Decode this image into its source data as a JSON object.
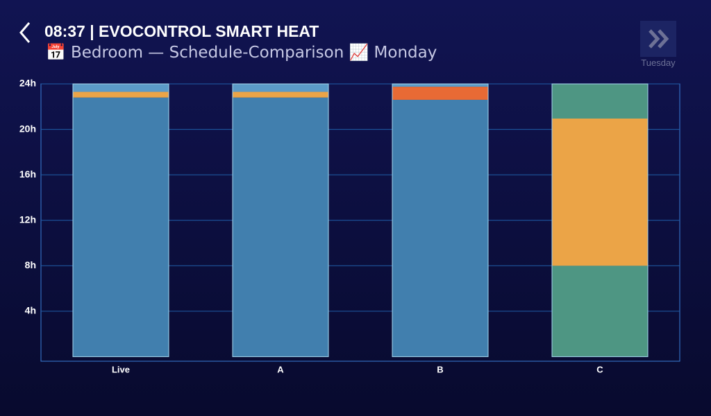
{
  "header": {
    "title": "08:37 | EVOCONTROL SMART HEAT",
    "subtitle": "📅 Bedroom — Schedule-Comparison 📈 Monday"
  },
  "next_button": {
    "label": "Tuesday"
  },
  "chart_data": {
    "type": "stacked_bar",
    "categories": [
      "Live",
      "A",
      "B",
      "C"
    ],
    "series": [
      {
        "color": "#417fae",
        "values": [
          22.8,
          22.8,
          22.6,
          0
        ]
      },
      {
        "color": "#4e9683",
        "values": [
          0,
          0,
          0,
          8
        ]
      },
      {
        "color": "#eba447",
        "values": [
          0.5,
          0.5,
          0,
          12.95
        ]
      },
      {
        "color": "#e86a35",
        "values": [
          0,
          0,
          1.15,
          0
        ]
      },
      {
        "color": "#5b9bc8",
        "values": [
          0.7,
          0.7,
          0.25,
          0
        ]
      },
      {
        "color": "#4e9683",
        "values": [
          0,
          0,
          0,
          3.05
        ]
      }
    ],
    "ylim": [
      -0.4,
      24
    ],
    "yticks": [
      {
        "value": 4,
        "label": "4h"
      },
      {
        "value": 8,
        "label": "8h"
      },
      {
        "value": 12,
        "label": "12h"
      },
      {
        "value": 16,
        "label": "16h"
      },
      {
        "value": 20,
        "label": "20h"
      },
      {
        "value": 24,
        "label": "24h"
      }
    ],
    "grid": true
  }
}
